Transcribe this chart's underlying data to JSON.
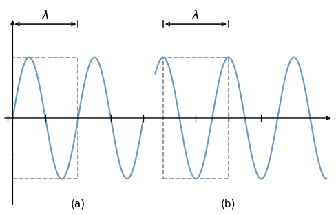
{
  "fig_width": 4.88,
  "fig_height": 3.13,
  "dpi": 100,
  "wave_color": "#6a9cc4",
  "wave_linewidth": 1.6,
  "axis_color": "#000000",
  "dashed_color": "#888888",
  "amplitude": 1.0,
  "two_pi": 6.2832,
  "label_a": "(a)",
  "label_b": "(b)",
  "lambda_symbol": "λ",
  "lambda_fontsize": 13,
  "label_fontsize": 11
}
